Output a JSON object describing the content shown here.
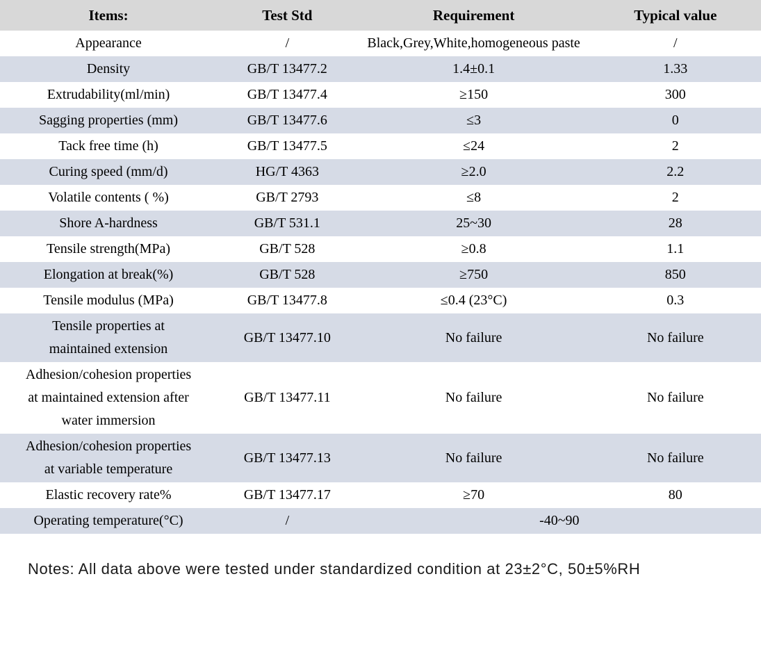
{
  "colors": {
    "header_bg": "#d8d8d8",
    "row_shade": "#d6dbe6"
  },
  "table": {
    "columns": [
      {
        "label": "Items:"
      },
      {
        "label": "Test Std"
      },
      {
        "label": "Requirement"
      },
      {
        "label": "Typical value"
      }
    ],
    "rows": [
      {
        "item": "Appearance",
        "std": "/",
        "req": "Black,Grey,White,homogeneous paste",
        "typ": "/"
      },
      {
        "item": "Density",
        "std": "GB/T 13477.2",
        "req": "1.4±0.1",
        "typ": "1.33"
      },
      {
        "item": "Extrudability(ml/min)",
        "std": "GB/T 13477.4",
        "req": "≥150",
        "typ": "300"
      },
      {
        "item": "Sagging properties (mm)",
        "std": "GB/T 13477.6",
        "req": "≤3",
        "typ": "0"
      },
      {
        "item": "Tack free time (h)",
        "std": "GB/T 13477.5",
        "req": "≤24",
        "typ": "2"
      },
      {
        "item": "Curing speed (mm/d)",
        "std": "HG/T 4363",
        "req": "≥2.0",
        "typ": "2.2"
      },
      {
        "item": "Volatile contents ( %)",
        "std": "GB/T 2793",
        "req": "≤8",
        "typ": "2"
      },
      {
        "item": "Shore A-hardness",
        "std": "GB/T 531.1",
        "req": "25~30",
        "typ": "28"
      },
      {
        "item": "Tensile strength(MPa)",
        "std": "GB/T 528",
        "req": "≥0.8",
        "typ": "1.1"
      },
      {
        "item": "Elongation at break(%)",
        "std": "GB/T 528",
        "req": "≥750",
        "typ": "850"
      },
      {
        "item": "Tensile modulus (MPa)",
        "std": "GB/T 13477.8",
        "req": "≤0.4 (23°C)",
        "typ": "0.3"
      },
      {
        "item": "Tensile properties at maintained extension",
        "std": "GB/T 13477.10",
        "req": "No failure",
        "typ": "No failure"
      },
      {
        "item": "Adhesion/cohesion properties at maintained extension after water immersion",
        "std": "GB/T 13477.11",
        "req": "No failure",
        "typ": "No failure"
      },
      {
        "item": "Adhesion/cohesion properties at variable temperature",
        "std": "GB/T 13477.13",
        "req": "No failure",
        "typ": "No failure"
      },
      {
        "item": "Elastic recovery rate%",
        "std": "GB/T 13477.17",
        "req": "≥70",
        "typ": "80"
      },
      {
        "item": "Operating temperature(°C)",
        "std": "/",
        "req": "-40~90"
      }
    ]
  },
  "notes": "Notes: All data above were tested under standardized condition at 23±2°C, 50±5%RH"
}
